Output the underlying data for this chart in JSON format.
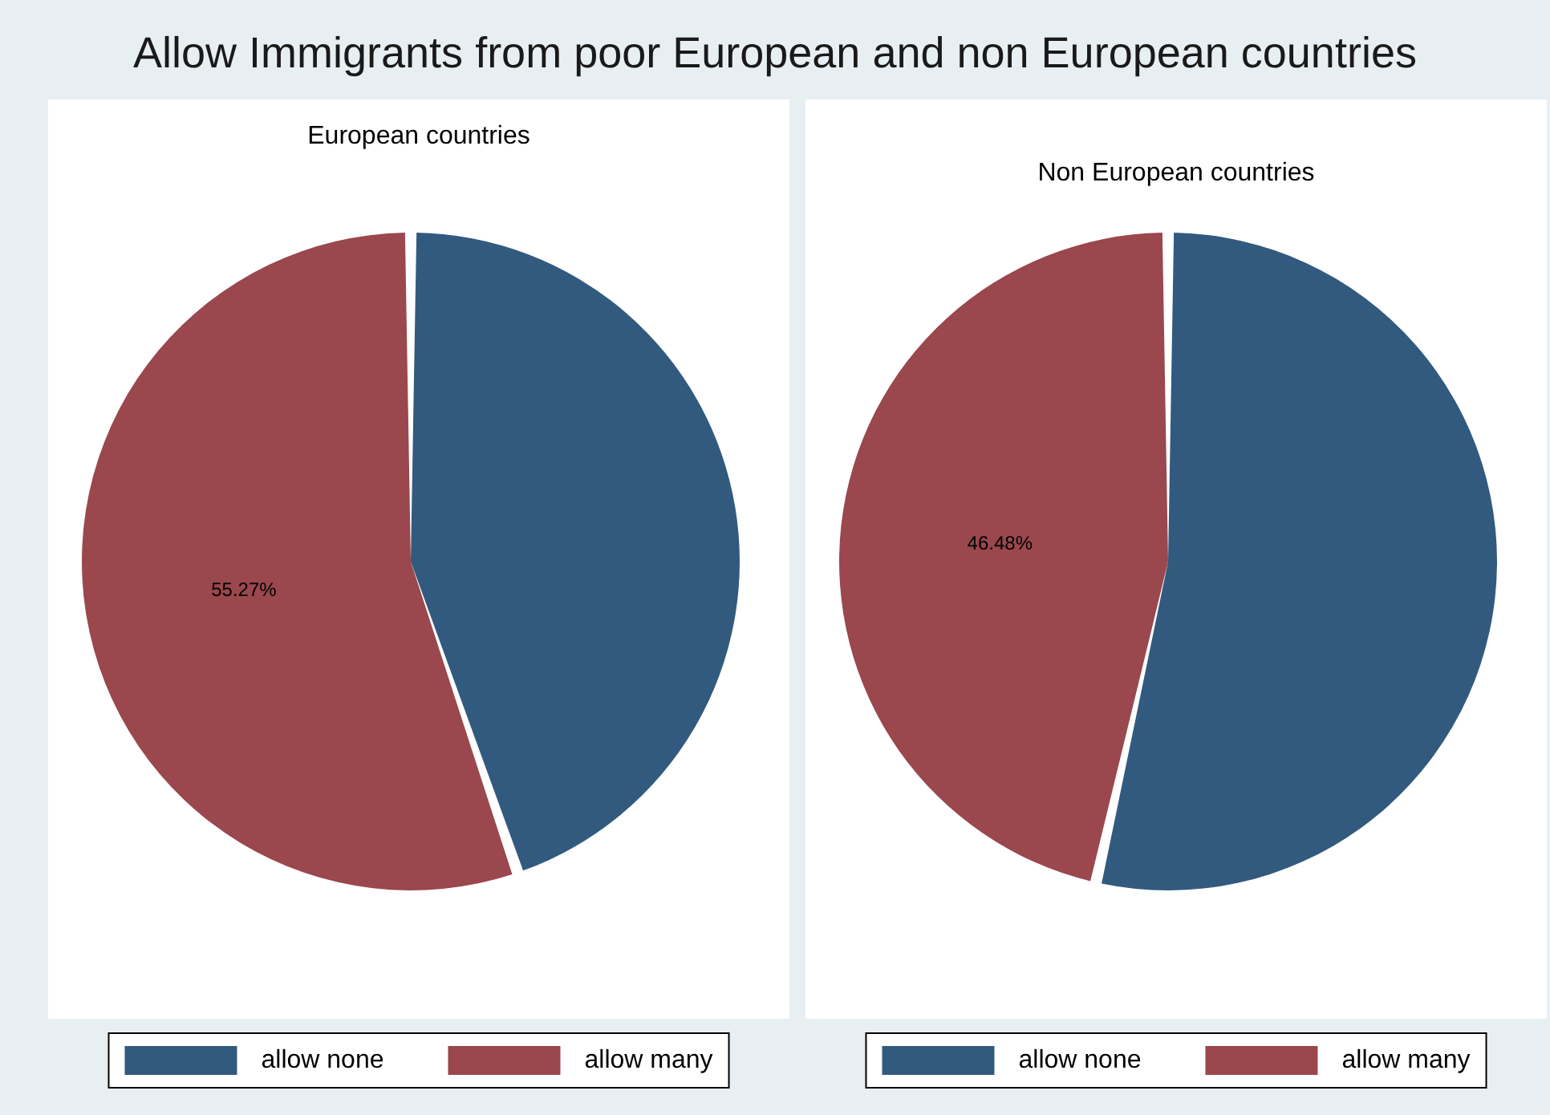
{
  "chart_data": [
    {
      "type": "pie",
      "title": "Allow Immigrants from poor European and non European countries",
      "subtitle": "European countries",
      "categories": [
        "allow none",
        "allow many"
      ],
      "values": [
        44.73,
        55.27
      ],
      "value_labels": [
        null,
        "55.27%"
      ],
      "colors": [
        "#325a7e",
        "#9a474d"
      ],
      "legend": "bottom"
    },
    {
      "type": "pie",
      "subtitle": "Non European countries",
      "categories": [
        "allow none",
        "allow many"
      ],
      "values": [
        53.52,
        46.48
      ],
      "value_labels": [
        null,
        "46.48%"
      ],
      "colors": [
        "#325a7e",
        "#9a474d"
      ],
      "legend": "bottom"
    }
  ]
}
